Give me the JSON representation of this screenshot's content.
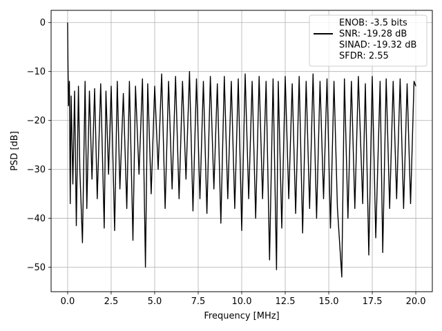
{
  "chart_data": {
    "type": "line",
    "title": "",
    "xlabel": "Frequency [MHz]",
    "ylabel": "PSD [dB]",
    "xlim": [
      -0.95,
      20.95
    ],
    "ylim": [
      -55,
      2.5
    ],
    "xticks": [
      0.0,
      2.5,
      5.0,
      7.5,
      10.0,
      12.5,
      15.0,
      17.5,
      20.0
    ],
    "xtick_labels": [
      "0.0",
      "2.5",
      "5.0",
      "7.5",
      "10.0",
      "12.5",
      "15.0",
      "17.5",
      "20.0"
    ],
    "yticks": [
      0,
      -10,
      -20,
      -30,
      -40,
      -50
    ],
    "ytick_labels": [
      "0",
      "−10",
      "−20",
      "−30",
      "−40",
      "−50"
    ],
    "grid": true,
    "legend_position": "top-right",
    "legend": [
      {
        "label": "ENOB: -3.5 bits",
        "line": false
      },
      {
        "label": "SNR: -19.28 dB",
        "line": true
      },
      {
        "label": "SINAD: -19.32 dB",
        "line": false
      },
      {
        "label": "SFDR: 2.55",
        "line": false
      }
    ],
    "series": [
      {
        "color": "#000000",
        "x": [
          0.0,
          0.02,
          0.05,
          0.1,
          0.15,
          0.2,
          0.3,
          0.4,
          0.5,
          0.62,
          0.7,
          0.85,
          1.0,
          1.1,
          1.25,
          1.4,
          1.55,
          1.7,
          1.9,
          2.1,
          2.2,
          2.35,
          2.5,
          2.7,
          2.85,
          3.0,
          3.2,
          3.4,
          3.55,
          3.75,
          3.9,
          4.1,
          4.3,
          4.47,
          4.6,
          4.8,
          5.0,
          5.2,
          5.4,
          5.6,
          5.8,
          6.0,
          6.2,
          6.4,
          6.6,
          6.8,
          7.0,
          7.2,
          7.4,
          7.6,
          7.8,
          8.0,
          8.2,
          8.4,
          8.6,
          8.8,
          9.0,
          9.2,
          9.4,
          9.6,
          9.8,
          10.0,
          10.2,
          10.4,
          10.6,
          10.8,
          11.0,
          11.2,
          11.4,
          11.6,
          11.8,
          12.0,
          12.1,
          12.3,
          12.5,
          12.7,
          12.9,
          13.1,
          13.3,
          13.5,
          13.7,
          13.9,
          14.1,
          14.3,
          14.5,
          14.7,
          14.9,
          15.1,
          15.3,
          15.5,
          15.75,
          15.9,
          16.1,
          16.3,
          16.5,
          16.7,
          16.95,
          17.1,
          17.3,
          17.5,
          17.7,
          17.95,
          18.1,
          18.3,
          18.5,
          18.7,
          18.9,
          19.1,
          19.3,
          19.5,
          19.7,
          19.9,
          20.0
        ],
        "y": [
          0.0,
          -8.0,
          -17.0,
          -12.0,
          -37.0,
          -15.0,
          -33.0,
          -14.0,
          -41.5,
          -13.0,
          -30.0,
          -45.0,
          -12.0,
          -38.0,
          -14.0,
          -32.0,
          -13.5,
          -36.0,
          -12.5,
          -42.0,
          -14.0,
          -31.0,
          -13.0,
          -42.5,
          -12.0,
          -34.0,
          -14.5,
          -38.0,
          -12.0,
          -44.5,
          -13.0,
          -31.0,
          -11.5,
          -50.0,
          -12.5,
          -35.0,
          -13.0,
          -30.0,
          -10.5,
          -38.0,
          -12.0,
          -34.0,
          -11.0,
          -36.0,
          -12.0,
          -32.0,
          -10.0,
          -38.5,
          -11.5,
          -36.0,
          -12.0,
          -39.0,
          -11.0,
          -34.0,
          -12.5,
          -41.0,
          -11.0,
          -36.0,
          -12.0,
          -38.0,
          -11.5,
          -42.5,
          -10.5,
          -36.0,
          -12.0,
          -40.0,
          -11.0,
          -36.0,
          -12.0,
          -48.5,
          -11.5,
          -50.5,
          -12.0,
          -42.0,
          -11.0,
          -36.0,
          -12.5,
          -39.0,
          -11.0,
          -43.0,
          -12.0,
          -38.0,
          -10.5,
          -40.0,
          -12.0,
          -36.0,
          -11.5,
          -42.0,
          -12.0,
          -38.0,
          -52.0,
          -11.5,
          -40.0,
          -12.0,
          -38.0,
          -11.0,
          -37.0,
          -12.5,
          -47.5,
          -11.0,
          -44.0,
          -12.0,
          -47.0,
          -11.5,
          -38.0,
          -12.0,
          -36.0,
          -11.5,
          -38.0,
          -12.5,
          -37.0,
          -12.0,
          -13.0
        ]
      }
    ]
  }
}
